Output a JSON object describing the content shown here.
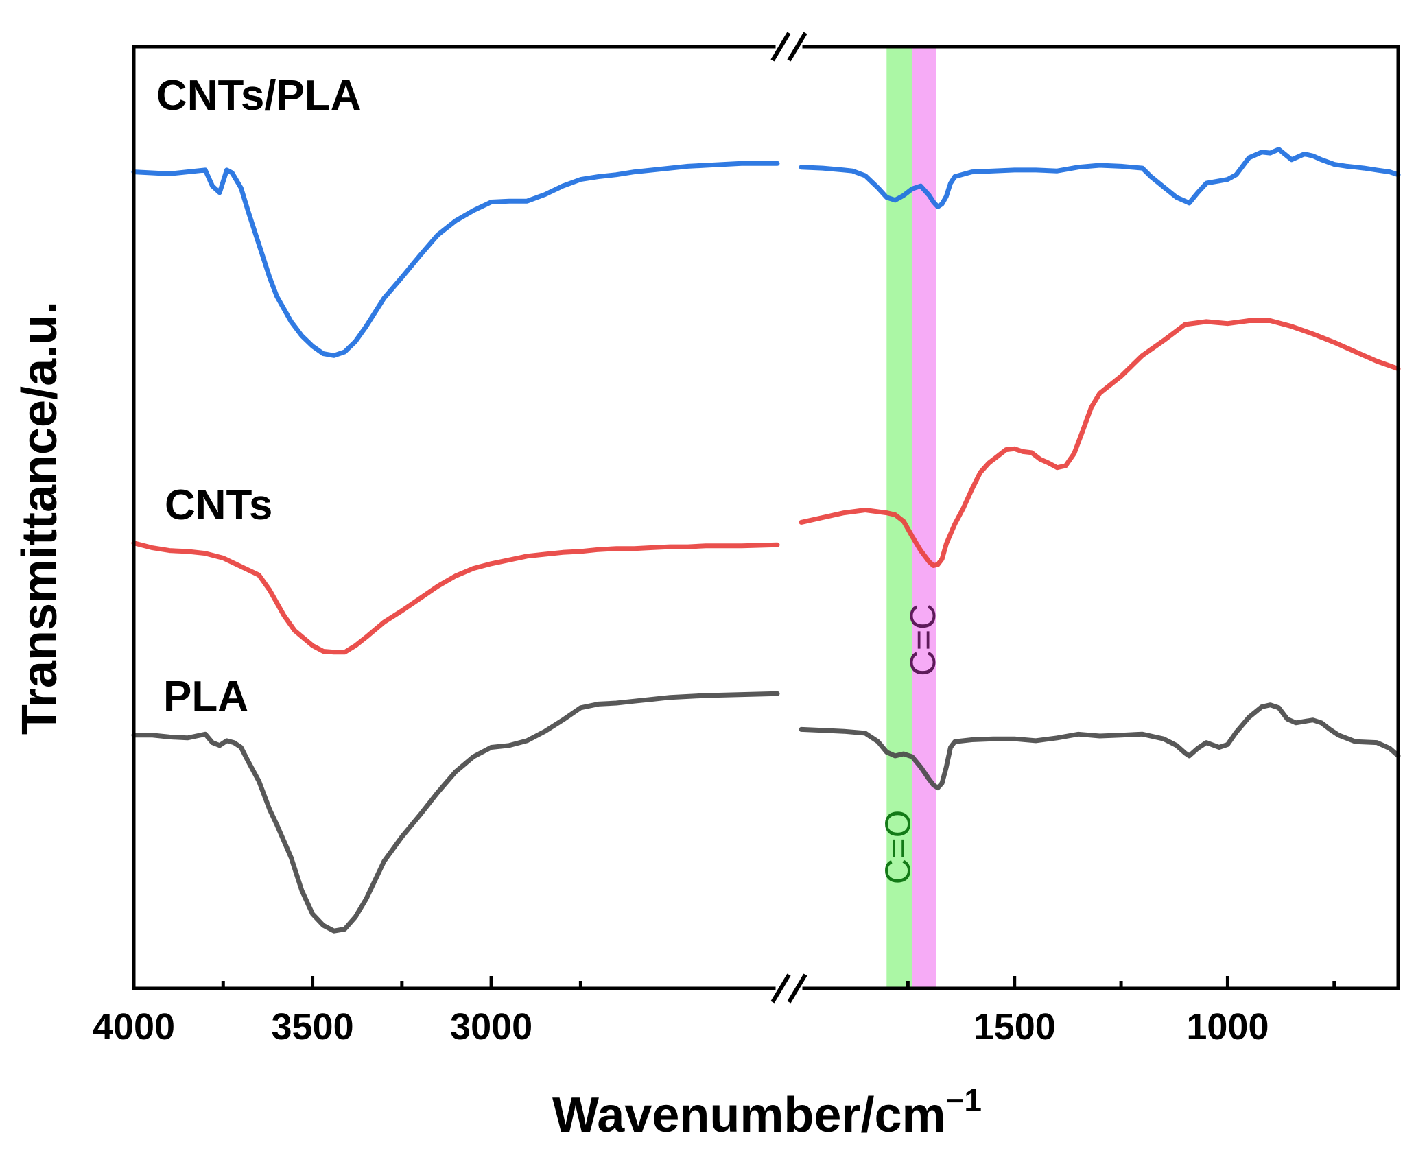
{
  "chart_data": {
    "type": "line",
    "title": "",
    "xlabel": "Wavenumber/cm",
    "xlabel_superscript": "−1",
    "ylabel": "Transmittance/a.u.",
    "x_reversed": true,
    "axis_break": true,
    "x_segments": [
      {
        "from": 4000,
        "to": 2200
      },
      {
        "from": 2000,
        "to": 600
      }
    ],
    "x_ticks": [
      4000,
      3500,
      3000,
      1500,
      1000
    ],
    "x_minor_ticks": [
      3750,
      3250,
      2750,
      1750,
      1250,
      750
    ],
    "y_ticks_shown": false,
    "ylim": [
      0,
      100
    ],
    "highlight_bands": [
      {
        "from": 1800,
        "to": 1740,
        "color": "#a6f7a0",
        "label": "C=O",
        "label_color": "#137a17",
        "label_y": 15
      },
      {
        "from": 1740,
        "to": 1683,
        "color": "#f6a6f6",
        "label": "C=C",
        "label_color": "#5e1a5b",
        "label_y": 37
      }
    ],
    "series": [
      {
        "name": "CNTs/PLA",
        "label": "CNTs/PLA",
        "color": "#1e6fe0",
        "points": [
          [
            4000,
            86.7
          ],
          [
            3950,
            86.6
          ],
          [
            3900,
            86.5
          ],
          [
            3850,
            86.7
          ],
          [
            3800,
            86.9
          ],
          [
            3780,
            85.2
          ],
          [
            3760,
            84.5
          ],
          [
            3740,
            86.9
          ],
          [
            3725,
            86.6
          ],
          [
            3700,
            85
          ],
          [
            3680,
            82.5
          ],
          [
            3650,
            79
          ],
          [
            3620,
            75.5
          ],
          [
            3600,
            73.5
          ],
          [
            3560,
            70.8
          ],
          [
            3530,
            69.3
          ],
          [
            3500,
            68.2
          ],
          [
            3470,
            67.4
          ],
          [
            3440,
            67.2
          ],
          [
            3410,
            67.6
          ],
          [
            3380,
            68.7
          ],
          [
            3350,
            70.3
          ],
          [
            3300,
            73.3
          ],
          [
            3250,
            75.5
          ],
          [
            3200,
            77.8
          ],
          [
            3150,
            80
          ],
          [
            3100,
            81.5
          ],
          [
            3050,
            82.6
          ],
          [
            3000,
            83.5
          ],
          [
            2950,
            83.6
          ],
          [
            2900,
            83.6
          ],
          [
            2850,
            84.3
          ],
          [
            2800,
            85.2
          ],
          [
            2750,
            85.9
          ],
          [
            2700,
            86.2
          ],
          [
            2650,
            86.4
          ],
          [
            2600,
            86.7
          ],
          [
            2550,
            86.9
          ],
          [
            2500,
            87.1
          ],
          [
            2450,
            87.3
          ],
          [
            2400,
            87.4
          ],
          [
            2350,
            87.5
          ],
          [
            2300,
            87.6
          ],
          [
            2200,
            87.6
          ]
        ],
        "points2": [
          [
            2000,
            87.2
          ],
          [
            1950,
            87.1
          ],
          [
            1900,
            86.9
          ],
          [
            1880,
            86.8
          ],
          [
            1850,
            86.3
          ],
          [
            1820,
            85
          ],
          [
            1800,
            84
          ],
          [
            1780,
            83.7
          ],
          [
            1760,
            84.2
          ],
          [
            1740,
            84.9
          ],
          [
            1720,
            85.2
          ],
          [
            1700,
            84.2
          ],
          [
            1690,
            83.5
          ],
          [
            1680,
            83
          ],
          [
            1670,
            83.3
          ],
          [
            1660,
            84.1
          ],
          [
            1650,
            85.5
          ],
          [
            1640,
            86.2
          ],
          [
            1600,
            86.7
          ],
          [
            1550,
            86.8
          ],
          [
            1500,
            86.9
          ],
          [
            1450,
            86.9
          ],
          [
            1400,
            86.8
          ],
          [
            1350,
            87.2
          ],
          [
            1300,
            87.4
          ],
          [
            1250,
            87.3
          ],
          [
            1200,
            87.1
          ],
          [
            1180,
            86.2
          ],
          [
            1150,
            85.1
          ],
          [
            1120,
            84
          ],
          [
            1090,
            83.4
          ],
          [
            1070,
            84.5
          ],
          [
            1050,
            85.5
          ],
          [
            1000,
            85.9
          ],
          [
            980,
            86.4
          ],
          [
            950,
            88.2
          ],
          [
            920,
            88.8
          ],
          [
            900,
            88.7
          ],
          [
            880,
            89.1
          ],
          [
            850,
            88
          ],
          [
            820,
            88.6
          ],
          [
            800,
            88.4
          ],
          [
            780,
            88
          ],
          [
            750,
            87.5
          ],
          [
            720,
            87.3
          ],
          [
            700,
            87.2
          ],
          [
            680,
            87.1
          ],
          [
            650,
            86.9
          ],
          [
            620,
            86.7
          ],
          [
            600,
            86.4
          ]
        ]
      },
      {
        "name": "CNTs",
        "label": "CNTs",
        "color": "#e8413e",
        "points": [
          [
            4000,
            47.3
          ],
          [
            3950,
            46.8
          ],
          [
            3900,
            46.5
          ],
          [
            3850,
            46.4
          ],
          [
            3800,
            46.2
          ],
          [
            3750,
            45.7
          ],
          [
            3700,
            44.8
          ],
          [
            3650,
            43.9
          ],
          [
            3620,
            42.3
          ],
          [
            3580,
            39.6
          ],
          [
            3550,
            38
          ],
          [
            3500,
            36.4
          ],
          [
            3470,
            35.8
          ],
          [
            3440,
            35.7
          ],
          [
            3410,
            35.7
          ],
          [
            3380,
            36.4
          ],
          [
            3350,
            37.3
          ],
          [
            3300,
            38.9
          ],
          [
            3250,
            40.1
          ],
          [
            3200,
            41.4
          ],
          [
            3150,
            42.7
          ],
          [
            3100,
            43.8
          ],
          [
            3050,
            44.6
          ],
          [
            3000,
            45.1
          ],
          [
            2950,
            45.5
          ],
          [
            2900,
            45.9
          ],
          [
            2850,
            46.1
          ],
          [
            2800,
            46.3
          ],
          [
            2750,
            46.4
          ],
          [
            2700,
            46.6
          ],
          [
            2650,
            46.7
          ],
          [
            2600,
            46.7
          ],
          [
            2550,
            46.8
          ],
          [
            2500,
            46.9
          ],
          [
            2450,
            46.9
          ],
          [
            2400,
            47
          ],
          [
            2350,
            47
          ],
          [
            2300,
            47
          ],
          [
            2200,
            47.1
          ]
        ],
        "points2": [
          [
            2000,
            49.5
          ],
          [
            1950,
            50
          ],
          [
            1900,
            50.5
          ],
          [
            1850,
            50.8
          ],
          [
            1800,
            50.5
          ],
          [
            1780,
            50.3
          ],
          [
            1760,
            49.6
          ],
          [
            1740,
            48
          ],
          [
            1720,
            46.5
          ],
          [
            1700,
            45.3
          ],
          [
            1690,
            44.9
          ],
          [
            1680,
            45
          ],
          [
            1670,
            45.6
          ],
          [
            1660,
            47.2
          ],
          [
            1640,
            49.3
          ],
          [
            1620,
            51
          ],
          [
            1600,
            53
          ],
          [
            1580,
            54.8
          ],
          [
            1560,
            55.8
          ],
          [
            1540,
            56.5
          ],
          [
            1520,
            57.2
          ],
          [
            1500,
            57.3
          ],
          [
            1480,
            57
          ],
          [
            1460,
            56.9
          ],
          [
            1440,
            56.2
          ],
          [
            1420,
            55.8
          ],
          [
            1400,
            55.3
          ],
          [
            1380,
            55.5
          ],
          [
            1360,
            56.8
          ],
          [
            1340,
            59.2
          ],
          [
            1320,
            61.7
          ],
          [
            1300,
            63.2
          ],
          [
            1250,
            65
          ],
          [
            1200,
            67.2
          ],
          [
            1150,
            68.8
          ],
          [
            1100,
            70.5
          ],
          [
            1050,
            70.8
          ],
          [
            1000,
            70.6
          ],
          [
            950,
            70.9
          ],
          [
            900,
            70.9
          ],
          [
            850,
            70.3
          ],
          [
            800,
            69.5
          ],
          [
            750,
            68.6
          ],
          [
            700,
            67.6
          ],
          [
            650,
            66.6
          ],
          [
            600,
            65.8
          ]
        ]
      },
      {
        "name": "PLA",
        "label": "PLA",
        "color": "#4a4a4a",
        "points": [
          [
            4000,
            26.9
          ],
          [
            3950,
            26.9
          ],
          [
            3900,
            26.7
          ],
          [
            3850,
            26.6
          ],
          [
            3800,
            27
          ],
          [
            3780,
            26.1
          ],
          [
            3760,
            25.8
          ],
          [
            3740,
            26.3
          ],
          [
            3720,
            26.1
          ],
          [
            3700,
            25.6
          ],
          [
            3680,
            24.1
          ],
          [
            3650,
            22
          ],
          [
            3620,
            19
          ],
          [
            3600,
            17.4
          ],
          [
            3560,
            13.9
          ],
          [
            3530,
            10.4
          ],
          [
            3500,
            7.9
          ],
          [
            3470,
            6.7
          ],
          [
            3440,
            6.1
          ],
          [
            3410,
            6.3
          ],
          [
            3380,
            7.6
          ],
          [
            3350,
            9.5
          ],
          [
            3300,
            13.5
          ],
          [
            3250,
            16.1
          ],
          [
            3200,
            18.4
          ],
          [
            3150,
            20.8
          ],
          [
            3100,
            23
          ],
          [
            3050,
            24.6
          ],
          [
            3000,
            25.6
          ],
          [
            2950,
            25.8
          ],
          [
            2900,
            26.3
          ],
          [
            2850,
            27.3
          ],
          [
            2800,
            28.5
          ],
          [
            2750,
            29.8
          ],
          [
            2700,
            30.2
          ],
          [
            2650,
            30.3
          ],
          [
            2600,
            30.5
          ],
          [
            2550,
            30.7
          ],
          [
            2500,
            30.9
          ],
          [
            2450,
            31
          ],
          [
            2400,
            31.1
          ],
          [
            2300,
            31.2
          ],
          [
            2200,
            31.3
          ]
        ],
        "points2": [
          [
            2000,
            27.5
          ],
          [
            1950,
            27.4
          ],
          [
            1900,
            27.3
          ],
          [
            1850,
            27.1
          ],
          [
            1820,
            26.2
          ],
          [
            1800,
            25.1
          ],
          [
            1780,
            24.7
          ],
          [
            1760,
            24.9
          ],
          [
            1740,
            24.6
          ],
          [
            1720,
            23.5
          ],
          [
            1700,
            22.2
          ],
          [
            1690,
            21.6
          ],
          [
            1680,
            21.3
          ],
          [
            1670,
            21.8
          ],
          [
            1660,
            23.5
          ],
          [
            1650,
            25.6
          ],
          [
            1640,
            26.2
          ],
          [
            1600,
            26.4
          ],
          [
            1550,
            26.5
          ],
          [
            1500,
            26.5
          ],
          [
            1450,
            26.3
          ],
          [
            1400,
            26.6
          ],
          [
            1350,
            27
          ],
          [
            1300,
            26.8
          ],
          [
            1250,
            26.9
          ],
          [
            1200,
            27
          ],
          [
            1150,
            26.5
          ],
          [
            1120,
            25.8
          ],
          [
            1100,
            25
          ],
          [
            1090,
            24.7
          ],
          [
            1070,
            25.5
          ],
          [
            1050,
            26.1
          ],
          [
            1020,
            25.6
          ],
          [
            1000,
            25.9
          ],
          [
            980,
            27.2
          ],
          [
            950,
            28.8
          ],
          [
            920,
            29.9
          ],
          [
            900,
            30.1
          ],
          [
            880,
            29.8
          ],
          [
            860,
            28.6
          ],
          [
            840,
            28.2
          ],
          [
            800,
            28.5
          ],
          [
            780,
            28.2
          ],
          [
            760,
            27.5
          ],
          [
            740,
            26.9
          ],
          [
            700,
            26.2
          ],
          [
            650,
            26.1
          ],
          [
            620,
            25.5
          ],
          [
            600,
            24.7
          ]
        ]
      }
    ]
  }
}
